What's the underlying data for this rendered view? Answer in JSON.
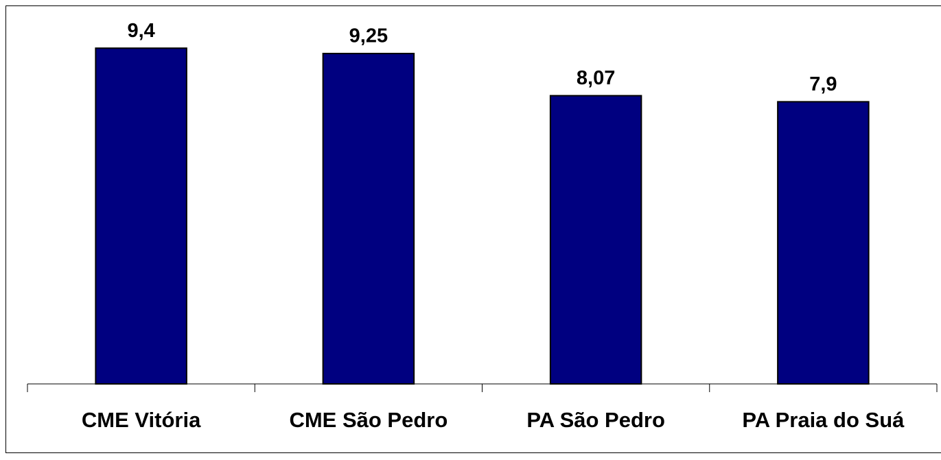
{
  "chart_data": {
    "type": "bar",
    "categories": [
      "CME Vitória",
      "CME São Pedro",
      "PA São Pedro",
      "PA Praia do Suá"
    ],
    "values": [
      9.4,
      9.25,
      8.07,
      7.9
    ],
    "value_labels": [
      "9,4",
      "9,25",
      "8,07",
      "7,9"
    ],
    "color": "#000080",
    "ylim": [
      0,
      10
    ]
  }
}
